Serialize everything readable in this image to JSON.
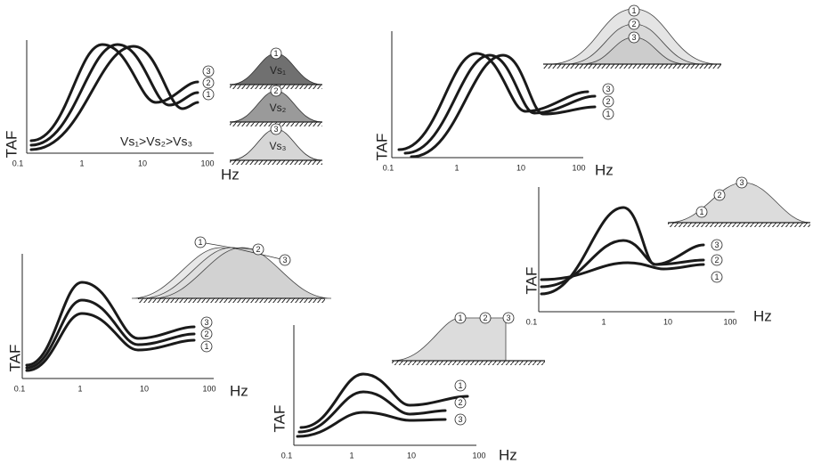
{
  "panels": [
    {
      "y_label": "TAF",
      "x_label": "Hz",
      "x_ticks": [
        "0.1",
        "1",
        "10",
        "100"
      ],
      "curve_labels": [
        "3",
        "2",
        "1"
      ],
      "hill_labels": [
        "1",
        "2",
        "3"
      ],
      "hill_texts": [
        "Vs₁",
        "Vs₂",
        "Vs₃"
      ],
      "relation": "Vs₁>Vs₂>Vs₃"
    },
    {
      "y_label": "TAF",
      "x_label": "Hz",
      "x_ticks": [
        "0.1",
        "1",
        "10",
        "100"
      ],
      "curve_labels": [
        "3",
        "2",
        "1"
      ],
      "hill_labels": [
        "1",
        "2",
        "3"
      ]
    },
    {
      "y_label": "TAF",
      "x_label": "Hz",
      "x_ticks": [
        "0.1",
        "1",
        "10",
        "100"
      ],
      "curve_labels": [
        "3",
        "2",
        "1"
      ],
      "hill_labels": [
        "1",
        "2",
        "3"
      ]
    },
    {
      "y_label": "TAF",
      "x_label": "Hz",
      "x_ticks": [
        "0.1",
        "1",
        "10",
        "100"
      ],
      "curve_labels": [
        "3",
        "2",
        "1"
      ],
      "hill_labels": [
        "1",
        "2",
        "3"
      ]
    },
    {
      "y_label": "TAF",
      "x_label": "Hz",
      "x_ticks": [
        "0.1",
        "1",
        "10",
        "100"
      ],
      "curve_labels": [
        "1",
        "2",
        "3"
      ],
      "hill_labels": [
        "1",
        "2",
        "3"
      ]
    }
  ]
}
